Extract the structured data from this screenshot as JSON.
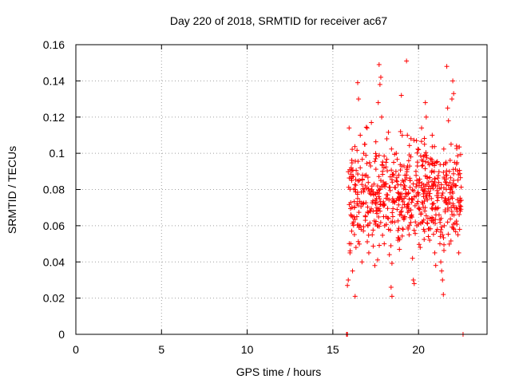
{
  "chart_data": {
    "type": "scatter",
    "title": "Day 220 of 2018, SRMTID for receiver ac67",
    "xlabel": "GPS time / hours",
    "ylabel": "SRMTID / TECUs",
    "xlim": [
      0,
      24
    ],
    "ylim": [
      0,
      0.16
    ],
    "xticks": [
      0,
      5,
      10,
      15,
      20
    ],
    "yticks": [
      0,
      0.02,
      0.04,
      0.06,
      0.08,
      0.1,
      0.12,
      0.14,
      0.16
    ],
    "xtick_labels": [
      "0",
      "5",
      "10",
      "15",
      "20"
    ],
    "ytick_labels": [
      "0",
      "0.02",
      "0.04",
      "0.06",
      "0.08",
      "0.1",
      "0.12",
      "0.14",
      "0.16"
    ],
    "grid": true,
    "marker": "+",
    "color": "#ff0000",
    "series": [
      {
        "name": "SRMTID",
        "data_range_x": [
          15.8,
          22.7
        ],
        "data_range_y": [
          0,
          0.151
        ],
        "points": [
          [
            15.8,
            0
          ],
          [
            15.82,
            0
          ],
          [
            15.85,
            0
          ],
          [
            22.6,
            0
          ],
          [
            15.85,
            0.027
          ],
          [
            15.9,
            0.03
          ],
          [
            16.0,
            0.045
          ],
          [
            16.05,
            0.05
          ],
          [
            16.1,
            0.057
          ],
          [
            16.15,
            0.035
          ],
          [
            16.2,
            0.062
          ],
          [
            16.25,
            0.07
          ],
          [
            16.3,
            0.021
          ],
          [
            16.35,
            0.048
          ],
          [
            16.4,
            0.065
          ],
          [
            16.45,
            0.075
          ],
          [
            16.45,
            0.139
          ],
          [
            16.5,
            0.13
          ],
          [
            16.55,
            0.085
          ],
          [
            16.6,
            0.092
          ],
          [
            16.65,
            0.058
          ],
          [
            16.7,
            0.04
          ],
          [
            16.75,
            0.072
          ],
          [
            16.8,
            0.1
          ],
          [
            16.85,
            0.105
          ],
          [
            16.9,
            0.063
          ],
          [
            16.95,
            0.088
          ],
          [
            17.0,
            0.114
          ],
          [
            17.05,
            0.06
          ],
          [
            17.1,
            0.045
          ],
          [
            17.15,
            0.078
          ],
          [
            17.2,
            0.093
          ],
          [
            17.25,
            0.117
          ],
          [
            17.3,
            0.055
          ],
          [
            17.35,
            0.068
          ],
          [
            17.4,
            0.083
          ],
          [
            17.45,
            0.038
          ],
          [
            17.5,
            0.097
          ],
          [
            17.55,
            0.075
          ],
          [
            17.6,
            0.06
          ],
          [
            17.65,
            0.128
          ],
          [
            17.7,
            0.149
          ],
          [
            17.75,
            0.138
          ],
          [
            17.8,
            0.142
          ],
          [
            17.85,
            0.12
          ],
          [
            17.9,
            0.09
          ],
          [
            17.95,
            0.071
          ],
          [
            18.0,
            0.05
          ],
          [
            18.05,
            0.083
          ],
          [
            18.1,
            0.065
          ],
          [
            18.15,
            0.108
          ],
          [
            18.2,
            0.077
          ],
          [
            18.25,
            0.058
          ],
          [
            18.3,
            0.044
          ],
          [
            18.35,
            0.087
          ],
          [
            18.4,
            0.026
          ],
          [
            18.45,
            0.021
          ],
          [
            18.5,
            0.073
          ],
          [
            18.55,
            0.095
          ],
          [
            18.6,
            0.062
          ],
          [
            18.65,
            0.081
          ],
          [
            18.7,
            0.1
          ],
          [
            18.75,
            0.069
          ],
          [
            18.8,
            0.052
          ],
          [
            18.85,
            0.088
          ],
          [
            18.9,
            0.075
          ],
          [
            18.95,
            0.112
          ],
          [
            19.0,
            0.132
          ],
          [
            19.05,
            0.07
          ],
          [
            19.1,
            0.058
          ],
          [
            19.15,
            0.093
          ],
          [
            19.2,
            0.065
          ],
          [
            19.25,
            0.08
          ],
          [
            19.3,
            0.151
          ],
          [
            19.35,
            0.11
          ],
          [
            19.4,
            0.072
          ],
          [
            19.45,
            0.055
          ],
          [
            19.5,
            0.085
          ],
          [
            19.55,
            0.098
          ],
          [
            19.6,
            0.066
          ],
          [
            19.65,
            0.042
          ],
          [
            19.7,
            0.03
          ],
          [
            19.75,
            0.028
          ],
          [
            19.8,
            0.071
          ],
          [
            19.85,
            0.09
          ],
          [
            19.9,
            0.06
          ],
          [
            19.95,
            0.078
          ],
          [
            20.0,
            0.102
          ],
          [
            20.05,
            0.084
          ],
          [
            20.1,
            0.048
          ],
          [
            20.15,
            0.067
          ],
          [
            20.2,
            0.093
          ],
          [
            20.25,
            0.072
          ],
          [
            20.3,
            0.058
          ],
          [
            20.35,
            0.105
          ],
          [
            20.4,
            0.128
          ],
          [
            20.45,
            0.12
          ],
          [
            20.5,
            0.087
          ],
          [
            20.55,
            0.064
          ],
          [
            20.6,
            0.079
          ],
          [
            20.65,
            0.052
          ],
          [
            20.7,
            0.097
          ],
          [
            20.75,
            0.075
          ],
          [
            20.8,
            0.11
          ],
          [
            20.85,
            0.062
          ],
          [
            20.9,
            0.083
          ],
          [
            20.95,
            0.045
          ],
          [
            21.0,
            0.07
          ],
          [
            21.05,
            0.095
          ],
          [
            21.1,
            0.058
          ],
          [
            21.15,
            0.078
          ],
          [
            21.2,
            0.066
          ],
          [
            21.25,
            0.05
          ],
          [
            21.3,
            0.04
          ],
          [
            21.35,
            0.035
          ],
          [
            21.4,
            0.03
          ],
          [
            21.45,
            0.022
          ],
          [
            21.5,
            0.06
          ],
          [
            21.55,
            0.075
          ],
          [
            21.6,
            0.088
          ],
          [
            21.65,
            0.148
          ],
          [
            21.7,
            0.125
          ],
          [
            21.75,
            0.118
          ],
          [
            21.8,
            0.09
          ],
          [
            21.85,
            0.08
          ],
          [
            21.9,
            0.105
          ],
          [
            21.95,
            0.13
          ],
          [
            22.0,
            0.14
          ],
          [
            22.05,
            0.133
          ],
          [
            22.1,
            0.095
          ],
          [
            22.15,
            0.082
          ],
          [
            22.2,
            0.07
          ],
          [
            22.25,
            0.068
          ],
          [
            22.3,
            0.055
          ],
          [
            22.35,
            0.045
          ],
          [
            22.4,
            0.058
          ],
          [
            15.95,
            0.114
          ],
          [
            16.1,
            0.085
          ],
          [
            16.3,
            0.08
          ],
          [
            16.6,
            0.11
          ],
          [
            16.9,
            0.082
          ],
          [
            17.2,
            0.068
          ],
          [
            17.5,
            0.072
          ],
          [
            17.8,
            0.085
          ],
          [
            18.1,
            0.095
          ],
          [
            18.4,
            0.062
          ],
          [
            18.7,
            0.085
          ],
          [
            19.0,
            0.068
          ],
          [
            19.3,
            0.088
          ],
          [
            19.6,
            0.075
          ],
          [
            19.9,
            0.085
          ],
          [
            20.2,
            0.062
          ],
          [
            20.5,
            0.078
          ],
          [
            20.8,
            0.072
          ],
          [
            21.1,
            0.082
          ],
          [
            21.4,
            0.055
          ],
          [
            21.7,
            0.062
          ],
          [
            22.0,
            0.078
          ]
        ]
      }
    ]
  }
}
